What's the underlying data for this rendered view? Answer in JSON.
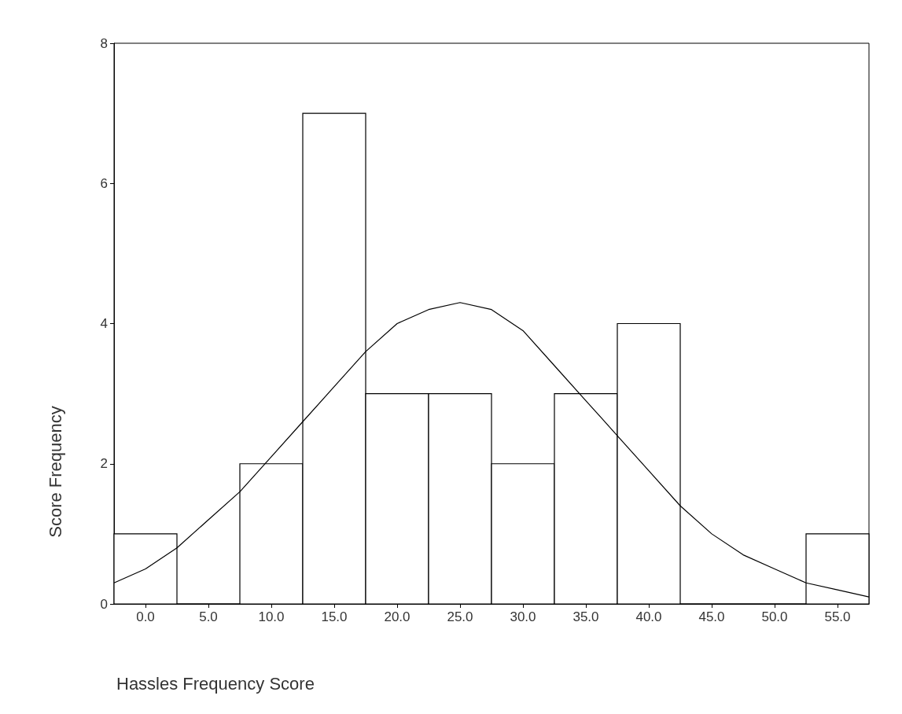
{
  "chart_data": {
    "type": "histogram",
    "xlabel": "Hassles Frequency Score",
    "ylabel": "Score Frequency",
    "bins": [
      -2.5,
      2.5,
      7.5,
      12.5,
      17.5,
      22.5,
      27.5,
      32.5,
      37.5,
      42.5,
      47.5,
      52.5,
      57.5
    ],
    "series": [
      {
        "color": "#ffffff",
        "values": [
          1,
          0,
          2,
          7,
          3,
          3,
          2,
          3,
          4,
          0,
          0,
          1
        ]
      },
      {
        "type": "line",
        "color": "#000000",
        "x": [
          -2.5,
          0,
          2.5,
          5,
          7.5,
          10,
          12.5,
          15,
          17.5,
          20,
          22.5,
          25,
          27.5,
          30,
          32.5,
          35,
          37.5,
          40,
          42.5,
          45,
          47.5,
          50,
          52.5,
          55,
          57.5
        ],
        "values": [
          0.3,
          0.5,
          0.8,
          1.2,
          1.6,
          2.1,
          2.6,
          3.1,
          3.6,
          4.0,
          4.2,
          4.3,
          4.2,
          3.9,
          3.4,
          2.9,
          2.4,
          1.9,
          1.4,
          1.0,
          0.7,
          0.5,
          0.3,
          0.2,
          0.1
        ]
      }
    ],
    "xlim": [
      -2.5,
      57.5
    ],
    "xticks": [
      {
        "value": 0,
        "label": "0.0"
      },
      {
        "value": 5,
        "label": "5.0"
      },
      {
        "value": 10,
        "label": "10.0"
      },
      {
        "value": 15,
        "label": "15.0"
      },
      {
        "value": 20,
        "label": "20.0"
      },
      {
        "value": 25,
        "label": "25.0"
      },
      {
        "value": 30,
        "label": "30.0"
      },
      {
        "value": 35,
        "label": "35.0"
      },
      {
        "value": 40,
        "label": "40.0"
      },
      {
        "value": 45,
        "label": "45.0"
      },
      {
        "value": 50,
        "label": "50.0"
      },
      {
        "value": 55,
        "label": "55.0"
      }
    ],
    "ylim": [
      0,
      8
    ],
    "yticks": [
      0,
      2,
      4,
      6,
      8
    ],
    "grid": false,
    "marker": "none",
    "line_style": "solid"
  }
}
